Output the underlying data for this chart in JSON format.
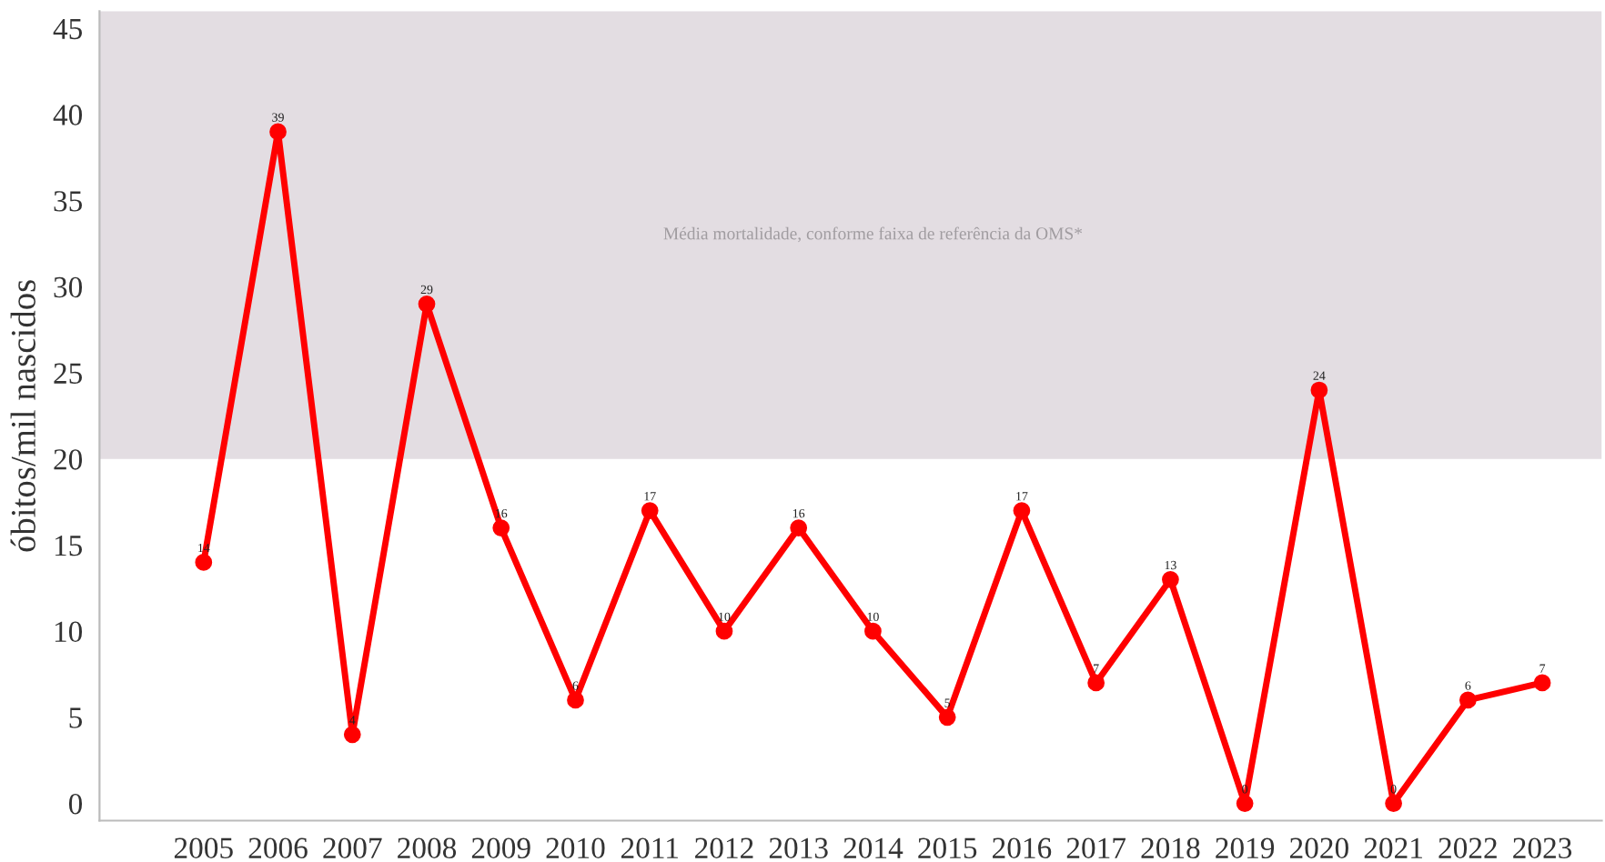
{
  "chart_data": {
    "type": "line",
    "ylabel": "óbitos/mil nascidos",
    "categories": [
      "2005",
      "2006",
      "2007",
      "2008",
      "2009",
      "2010",
      "2011",
      "2012",
      "2013",
      "2014",
      "2015",
      "2016",
      "2017",
      "2018",
      "2019",
      "2020",
      "2021",
      "2022",
      "2023"
    ],
    "series": [
      {
        "color": "#ff0000",
        "values": [
          14,
          39,
          4,
          29,
          16,
          6,
          17,
          10,
          16,
          10,
          5,
          17,
          7,
          13,
          0,
          24,
          0,
          6,
          7
        ]
      }
    ],
    "ylim": [
      -1,
      46
    ],
    "yticks": [
      0,
      5,
      10,
      15,
      20,
      25,
      30,
      35,
      40,
      45
    ],
    "bands": [
      {
        "axis": "y",
        "from": 20,
        "to": 46,
        "label": "Média mortalidade, conforme faixa de referência da OMS*",
        "color": "#e3dde2"
      }
    ],
    "data_labels": true,
    "marker": "circle",
    "line_style": "solid",
    "grid": false,
    "legend": false
  }
}
